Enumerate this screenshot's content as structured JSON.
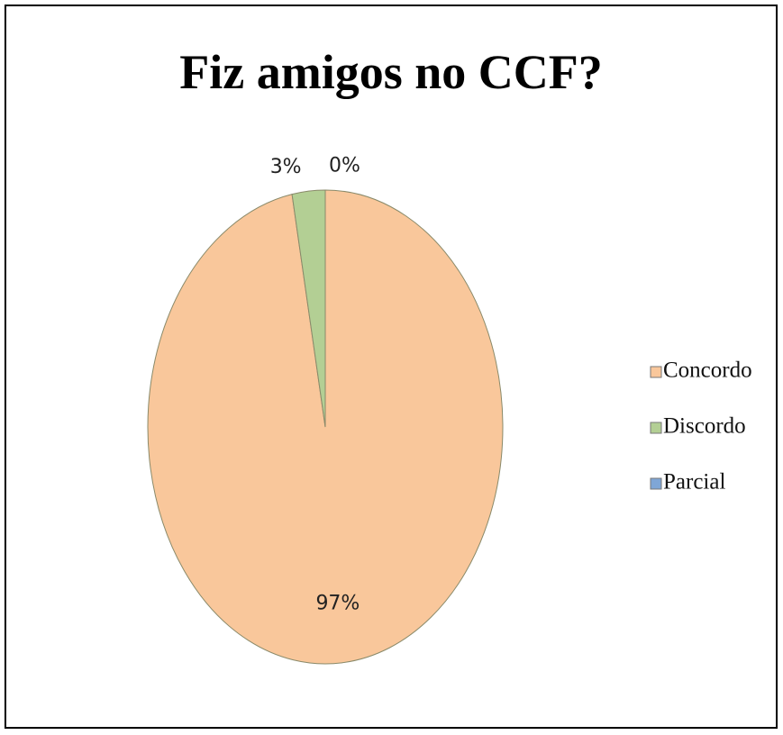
{
  "chart_data": {
    "type": "pie",
    "title": "Fiz amigos no CCF?",
    "categories": [
      "Concordo",
      "Discordo",
      "Parcial"
    ],
    "values": [
      97,
      3,
      0
    ],
    "value_labels": [
      "97%",
      "3%",
      "0%"
    ],
    "colors": [
      "#f9c79b",
      "#b3cf94",
      "#7fa6d6"
    ],
    "legend": "right"
  }
}
